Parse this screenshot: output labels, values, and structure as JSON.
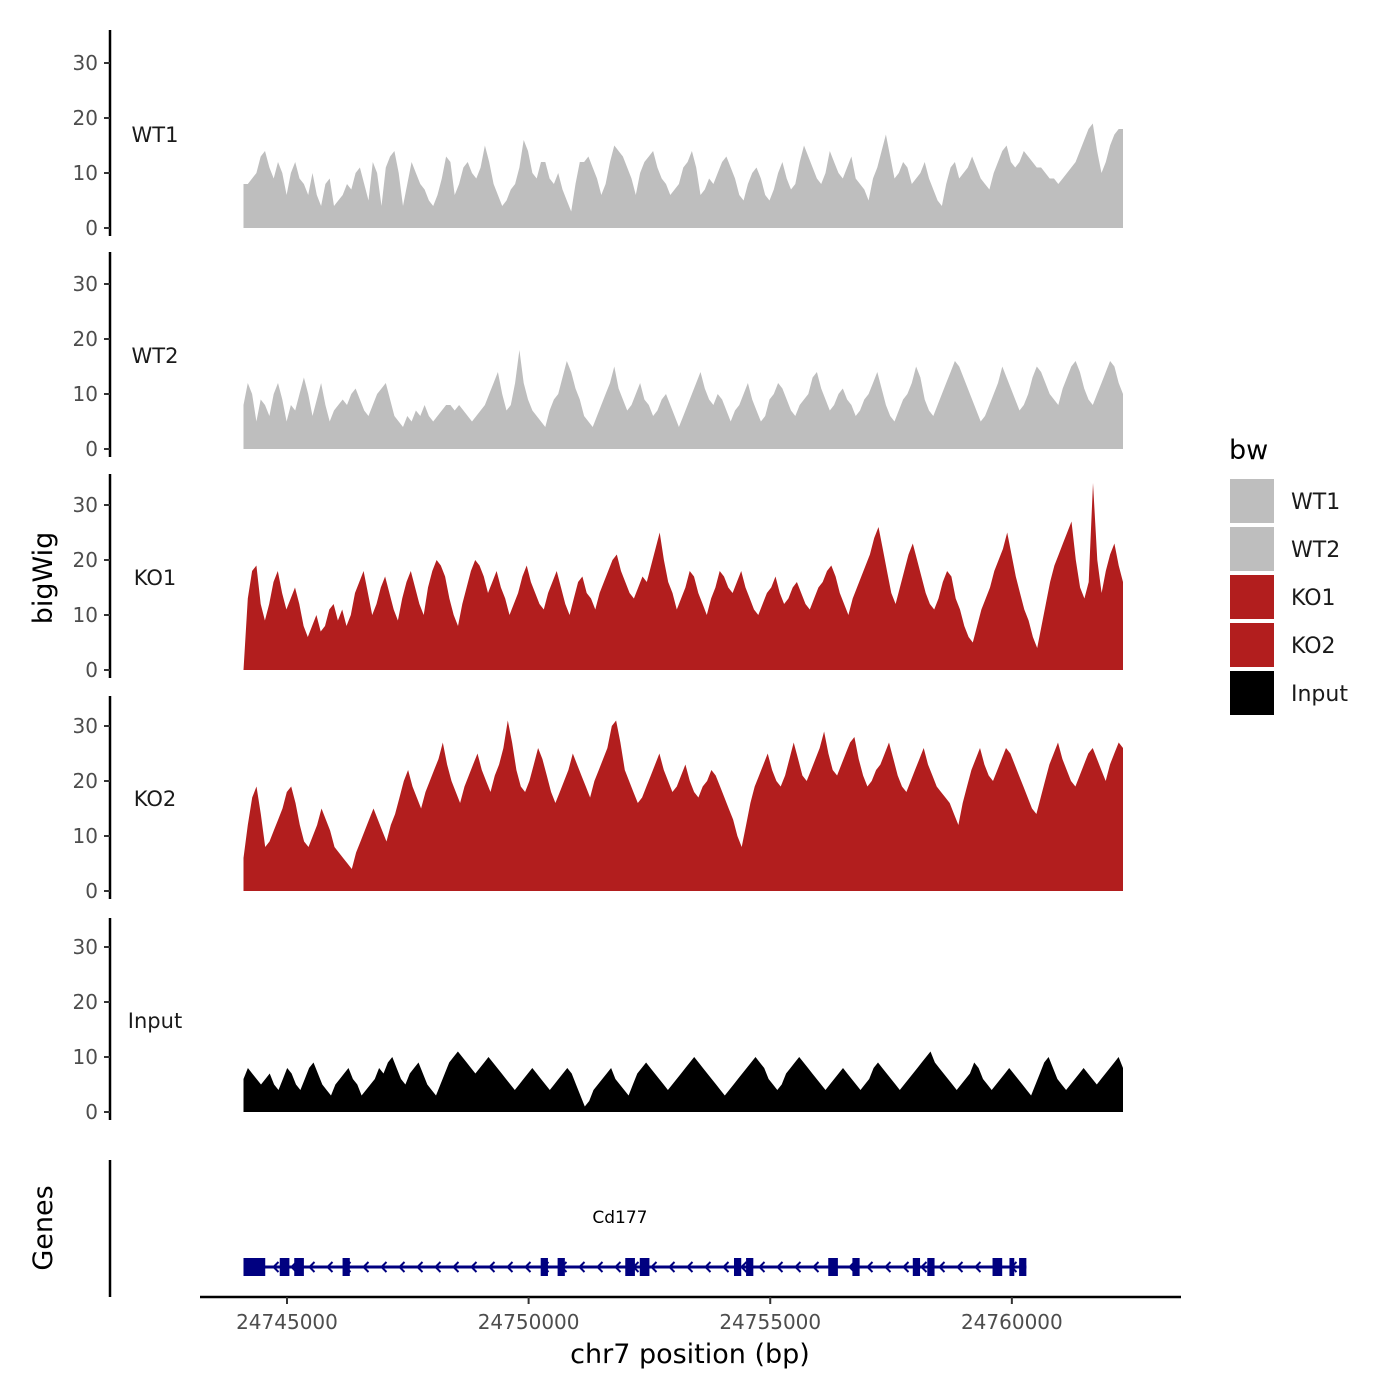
{
  "chart_data": {
    "type": "area",
    "title": "",
    "xlabel": "chr7 position (bp)",
    "ylabel": "bigWig",
    "genes_label": "Genes",
    "xlim": [
      24743200,
      24763500
    ],
    "ylim": [
      0,
      36
    ],
    "x_ticks": [
      24745000,
      24750000,
      24755000,
      24760000
    ],
    "x_tick_labels": [
      "24745000",
      "24750000",
      "24755000",
      "24760000"
    ],
    "y_ticks": [
      0,
      10,
      20,
      30
    ],
    "y_tick_labels": [
      "0",
      "10",
      "20",
      "30"
    ],
    "region": [
      24744100,
      24762300
    ],
    "legend": {
      "title": "bw",
      "position": "right",
      "entries": [
        {
          "label": "WT1",
          "color": "#bebebe"
        },
        {
          "label": "WT2",
          "color": "#bebebe"
        },
        {
          "label": "KO1",
          "color": "#b21e1e"
        },
        {
          "label": "KO2",
          "color": "#b21e1e"
        },
        {
          "label": "Input",
          "color": "#000000"
        }
      ]
    },
    "series": [
      {
        "name": "WT1",
        "color": "#bebebe",
        "values": [
          8,
          8,
          9,
          10,
          13,
          14,
          11,
          9,
          12,
          10,
          6,
          10,
          12,
          9,
          8,
          6,
          10,
          6,
          4,
          8,
          9,
          4,
          5,
          6,
          8,
          7,
          10,
          11,
          8,
          5,
          12,
          10,
          4,
          11,
          13,
          14,
          10,
          4,
          8,
          12,
          10,
          8,
          7,
          5,
          4,
          6,
          9,
          13,
          12,
          6,
          8,
          11,
          12,
          10,
          9,
          11,
          15,
          12,
          8,
          6,
          4,
          5,
          7,
          8,
          11,
          16,
          14,
          10,
          9,
          12,
          12,
          9,
          8,
          10,
          7,
          5,
          3,
          8,
          12,
          12,
          13,
          11,
          9,
          6,
          8,
          12,
          15,
          14,
          13,
          11,
          9,
          6,
          10,
          12,
          13,
          14,
          11,
          9,
          8,
          6,
          7,
          8,
          11,
          12,
          14,
          11,
          6,
          7,
          9,
          8,
          10,
          12,
          13,
          11,
          9,
          6,
          5,
          8,
          10,
          11,
          9,
          6,
          5,
          7,
          10,
          12,
          9,
          7,
          8,
          12,
          15,
          13,
          11,
          9,
          8,
          10,
          14,
          12,
          10,
          9,
          11,
          13,
          9,
          8,
          7,
          5,
          9,
          11,
          14,
          17,
          13,
          9,
          10,
          12,
          11,
          8,
          9,
          10,
          12,
          9,
          7,
          5,
          4,
          8,
          11,
          12,
          9,
          10,
          11,
          13,
          11,
          9,
          8,
          7,
          10,
          12,
          14,
          15,
          12,
          11,
          12,
          14,
          13,
          12,
          11,
          11,
          10,
          9,
          9,
          8,
          9,
          10,
          11,
          12,
          14,
          16,
          18,
          19,
          14,
          10,
          12,
          15,
          17,
          18,
          18
        ]
      },
      {
        "name": "WT2",
        "color": "#bebebe",
        "values": [
          8,
          12,
          10,
          5,
          9,
          8,
          6,
          10,
          12,
          9,
          5,
          8,
          7,
          10,
          13,
          10,
          6,
          9,
          12,
          8,
          5,
          7,
          8,
          9,
          8,
          10,
          11,
          9,
          7,
          6,
          8,
          10,
          11,
          12,
          9,
          6,
          5,
          4,
          6,
          5,
          7,
          6,
          8,
          6,
          5,
          6,
          7,
          8,
          8,
          7,
          8,
          7,
          6,
          5,
          6,
          7,
          8,
          10,
          12,
          14,
          10,
          7,
          8,
          12,
          18,
          12,
          9,
          7,
          6,
          5,
          4,
          7,
          9,
          10,
          13,
          16,
          14,
          11,
          9,
          6,
          5,
          4,
          6,
          8,
          10,
          12,
          15,
          11,
          9,
          7,
          8,
          10,
          12,
          9,
          8,
          6,
          7,
          9,
          10,
          8,
          6,
          4,
          6,
          8,
          10,
          12,
          14,
          11,
          9,
          8,
          10,
          9,
          7,
          5,
          7,
          8,
          10,
          12,
          9,
          7,
          5,
          6,
          9,
          10,
          12,
          11,
          9,
          7,
          6,
          8,
          9,
          10,
          13,
          14,
          11,
          9,
          7,
          8,
          10,
          11,
          9,
          8,
          6,
          7,
          9,
          10,
          12,
          14,
          11,
          8,
          6,
          5,
          7,
          9,
          10,
          12,
          15,
          13,
          9,
          7,
          6,
          8,
          10,
          12,
          14,
          16,
          15,
          13,
          11,
          9,
          7,
          5,
          6,
          8,
          10,
          12,
          15,
          13,
          11,
          9,
          7,
          8,
          10,
          13,
          15,
          14,
          12,
          10,
          9,
          8,
          11,
          13,
          15,
          16,
          14,
          11,
          9,
          8,
          10,
          12,
          14,
          16,
          15,
          12,
          10
        ]
      },
      {
        "name": "KO1",
        "color": "#b21e1e",
        "values": [
          0,
          13,
          18,
          19,
          12,
          9,
          12,
          16,
          18,
          14,
          11,
          13,
          15,
          12,
          8,
          6,
          8,
          10,
          7,
          8,
          11,
          12,
          9,
          11,
          8,
          10,
          14,
          16,
          18,
          14,
          10,
          12,
          15,
          17,
          14,
          11,
          9,
          13,
          16,
          18,
          15,
          12,
          10,
          15,
          18,
          20,
          19,
          17,
          13,
          10,
          8,
          12,
          15,
          18,
          20,
          19,
          17,
          14,
          16,
          18,
          15,
          13,
          10,
          12,
          14,
          17,
          19,
          16,
          14,
          12,
          11,
          14,
          16,
          18,
          15,
          12,
          10,
          13,
          16,
          17,
          14,
          13,
          11,
          14,
          16,
          18,
          20,
          21,
          18,
          16,
          14,
          13,
          15,
          17,
          16,
          19,
          22,
          25,
          20,
          16,
          14,
          11,
          13,
          15,
          18,
          17,
          14,
          12,
          10,
          13,
          15,
          18,
          17,
          15,
          14,
          16,
          18,
          15,
          13,
          11,
          10,
          12,
          14,
          15,
          17,
          14,
          12,
          13,
          15,
          16,
          14,
          12,
          11,
          13,
          15,
          16,
          18,
          19,
          17,
          14,
          12,
          10,
          13,
          15,
          17,
          19,
          21,
          24,
          26,
          22,
          18,
          14,
          12,
          15,
          18,
          21,
          23,
          20,
          17,
          14,
          12,
          11,
          13,
          16,
          18,
          17,
          13,
          11,
          8,
          6,
          5,
          8,
          11,
          13,
          15,
          18,
          20,
          22,
          25,
          21,
          17,
          14,
          11,
          9,
          6,
          4,
          8,
          12,
          16,
          19,
          21,
          23,
          25,
          27,
          20,
          15,
          13,
          16,
          34,
          20,
          14,
          18,
          21,
          23,
          19,
          16
        ]
      },
      {
        "name": "KO2",
        "color": "#b21e1e",
        "values": [
          6,
          12,
          17,
          19,
          14,
          8,
          9,
          11,
          13,
          15,
          18,
          19,
          16,
          12,
          9,
          8,
          10,
          12,
          15,
          13,
          11,
          8,
          7,
          6,
          5,
          4,
          7,
          9,
          11,
          13,
          15,
          13,
          11,
          9,
          12,
          14,
          17,
          20,
          22,
          19,
          17,
          15,
          18,
          20,
          22,
          24,
          27,
          23,
          20,
          18,
          16,
          19,
          21,
          23,
          25,
          22,
          20,
          18,
          21,
          23,
          26,
          31,
          27,
          22,
          19,
          18,
          20,
          23,
          26,
          24,
          21,
          18,
          16,
          18,
          20,
          22,
          25,
          23,
          21,
          19,
          17,
          20,
          22,
          24,
          26,
          30,
          31,
          27,
          22,
          20,
          18,
          16,
          17,
          19,
          21,
          23,
          25,
          22,
          20,
          18,
          19,
          21,
          23,
          20,
          18,
          17,
          19,
          20,
          22,
          21,
          19,
          17,
          15,
          13,
          10,
          8,
          12,
          16,
          19,
          21,
          23,
          25,
          22,
          20,
          19,
          21,
          24,
          27,
          24,
          21,
          20,
          22,
          24,
          26,
          29,
          25,
          22,
          21,
          23,
          25,
          27,
          28,
          24,
          21,
          19,
          20,
          22,
          23,
          25,
          27,
          24,
          21,
          19,
          18,
          20,
          22,
          24,
          26,
          23,
          21,
          19,
          18,
          17,
          16,
          14,
          12,
          16,
          19,
          22,
          24,
          26,
          23,
          21,
          20,
          22,
          24,
          26,
          25,
          23,
          21,
          19,
          17,
          15,
          14,
          17,
          20,
          23,
          25,
          27,
          24,
          22,
          20,
          19,
          21,
          23,
          25,
          26,
          24,
          22,
          20,
          23,
          25,
          27,
          26
        ]
      },
      {
        "name": "Input",
        "color": "#000000",
        "values": [
          6,
          8,
          7,
          6,
          5,
          6,
          7,
          5,
          4,
          6,
          8,
          7,
          5,
          4,
          6,
          8,
          9,
          7,
          5,
          4,
          3,
          5,
          6,
          7,
          8,
          6,
          5,
          3,
          4,
          5,
          6,
          8,
          7,
          9,
          10,
          8,
          6,
          5,
          7,
          8,
          9,
          7,
          5,
          4,
          3,
          5,
          7,
          9,
          10,
          11,
          10,
          9,
          8,
          7,
          8,
          9,
          10,
          9,
          8,
          7,
          6,
          5,
          4,
          5,
          6,
          7,
          8,
          7,
          6,
          5,
          4,
          5,
          6,
          7,
          8,
          7,
          5,
          3,
          1,
          2,
          4,
          5,
          6,
          7,
          8,
          6,
          5,
          4,
          3,
          5,
          7,
          8,
          9,
          8,
          7,
          6,
          5,
          4,
          5,
          6,
          7,
          8,
          9,
          10,
          9,
          8,
          7,
          6,
          5,
          4,
          3,
          4,
          5,
          6,
          7,
          8,
          9,
          10,
          9,
          8,
          6,
          5,
          4,
          5,
          7,
          8,
          9,
          10,
          9,
          8,
          7,
          6,
          5,
          4,
          5,
          6,
          7,
          8,
          7,
          6,
          5,
          4,
          5,
          6,
          8,
          9,
          8,
          7,
          6,
          5,
          4,
          5,
          6,
          7,
          8,
          9,
          10,
          11,
          9,
          8,
          7,
          6,
          5,
          4,
          5,
          6,
          7,
          9,
          8,
          6,
          5,
          4,
          5,
          6,
          7,
          8,
          7,
          6,
          5,
          4,
          3,
          5,
          7,
          9,
          10,
          8,
          6,
          5,
          4,
          5,
          6,
          7,
          8,
          7,
          6,
          5,
          6,
          7,
          8,
          9,
          10,
          8
        ]
      }
    ],
    "genes": [
      {
        "name": "Cd177",
        "strand": "-",
        "start": 24744100,
        "end": 24760300,
        "color": "#000080",
        "exons": [
          [
            24744100,
            24744550
          ],
          [
            24744850,
            24745050
          ],
          [
            24745150,
            24745350
          ],
          [
            24746150,
            24746300
          ],
          [
            24750250,
            24750400
          ],
          [
            24750600,
            24750750
          ],
          [
            24752000,
            24752200
          ],
          [
            24752300,
            24752500
          ],
          [
            24754250,
            24754400
          ],
          [
            24754500,
            24754650
          ],
          [
            24756200,
            24756400
          ],
          [
            24756700,
            24756850
          ],
          [
            24757950,
            24758100
          ],
          [
            24758250,
            24758400
          ],
          [
            24759600,
            24759800
          ],
          [
            24759950,
            24760050
          ],
          [
            24760150,
            24760300
          ]
        ]
      }
    ]
  }
}
